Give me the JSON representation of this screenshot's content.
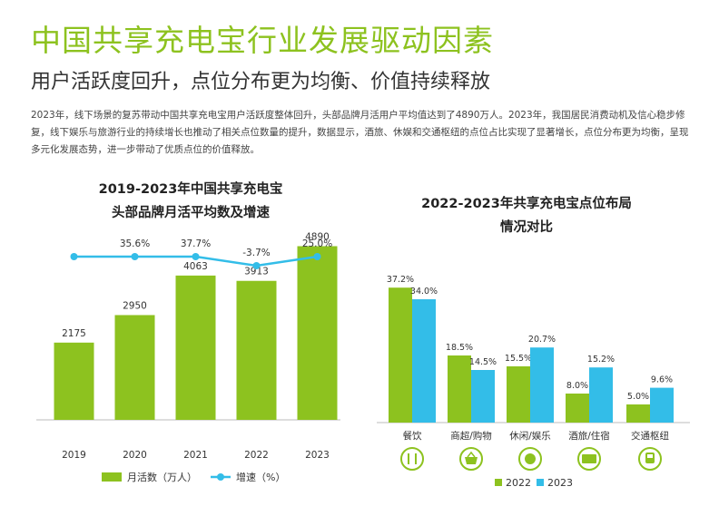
{
  "title": "中国共享充电宝行业发展驱动因素",
  "subtitle": "用户活跃度回升，点位分布更为均衡、价值持续释放",
  "body": "2023年，线下场景的复苏带动中国共享充电宝用户活跃度整体回升，头部品牌月活用户平均值达到了4890万人。2023年，我国居民消费动机及信心稳步修复，线下娱乐与旅游行业的持续增长也推动了相关点位数量的提升，数据显示，酒旅、休娱和交通枢纽的点位占比实现了显著增长，点位分布更为均衡，呈现多元化发展态势，进一步带动了优质点位的价值释放。",
  "colors": {
    "green": "#8dc21f",
    "blue": "#33bde8",
    "title_green": "#8dc21f"
  },
  "chart_data": [
    {
      "type": "bar",
      "title_line1": "2019-2023年中国共享充电宝",
      "title_line2": "头部品牌月活平均数及增速",
      "categories": [
        "2019",
        "2020",
        "2021",
        "2022",
        "2023"
      ],
      "series": [
        {
          "name": "月活数（万人）",
          "type": "bar",
          "values": [
            2175,
            2950,
            4063,
            3913,
            4890
          ],
          "labels": [
            "2175",
            "2950",
            "4063",
            "3913",
            "4890"
          ]
        },
        {
          "name": "增速（%）",
          "type": "line",
          "values": [
            null,
            35.6,
            37.7,
            -3.7,
            25.0
          ],
          "labels": [
            "",
            "35.6%",
            "37.7%",
            "-3.7%",
            "25.0%"
          ]
        }
      ],
      "legend": [
        "月活数（万人）",
        "增速（%）"
      ],
      "ylim": [
        0,
        6000
      ],
      "legend_position": "bottom"
    },
    {
      "type": "bar",
      "title_line1": "2022-2023年共享充电宝点位布局",
      "title_line2": "情况对比",
      "categories": [
        "餐饮",
        "商超/购物",
        "休闲/娱乐",
        "酒旅/住宿",
        "交通枢纽"
      ],
      "icons": [
        "utensils-icon",
        "basket-icon",
        "theater-icon",
        "hotel-icon",
        "train-icon"
      ],
      "series": [
        {
          "name": "2022",
          "values": [
            37.2,
            18.5,
            15.5,
            8.0,
            5.0
          ],
          "labels": [
            "37.2%",
            "18.5%",
            "15.5%",
            "8.0%",
            "5.0%"
          ]
        },
        {
          "name": "2023",
          "values": [
            34.0,
            14.5,
            20.7,
            15.2,
            9.6
          ],
          "labels": [
            "34.0%",
            "14.5%",
            "20.7%",
            "15.2%",
            "9.6%"
          ]
        }
      ],
      "legend": [
        "2022",
        "2023"
      ],
      "ylim": [
        0,
        40
      ],
      "legend_position": "bottom"
    }
  ]
}
